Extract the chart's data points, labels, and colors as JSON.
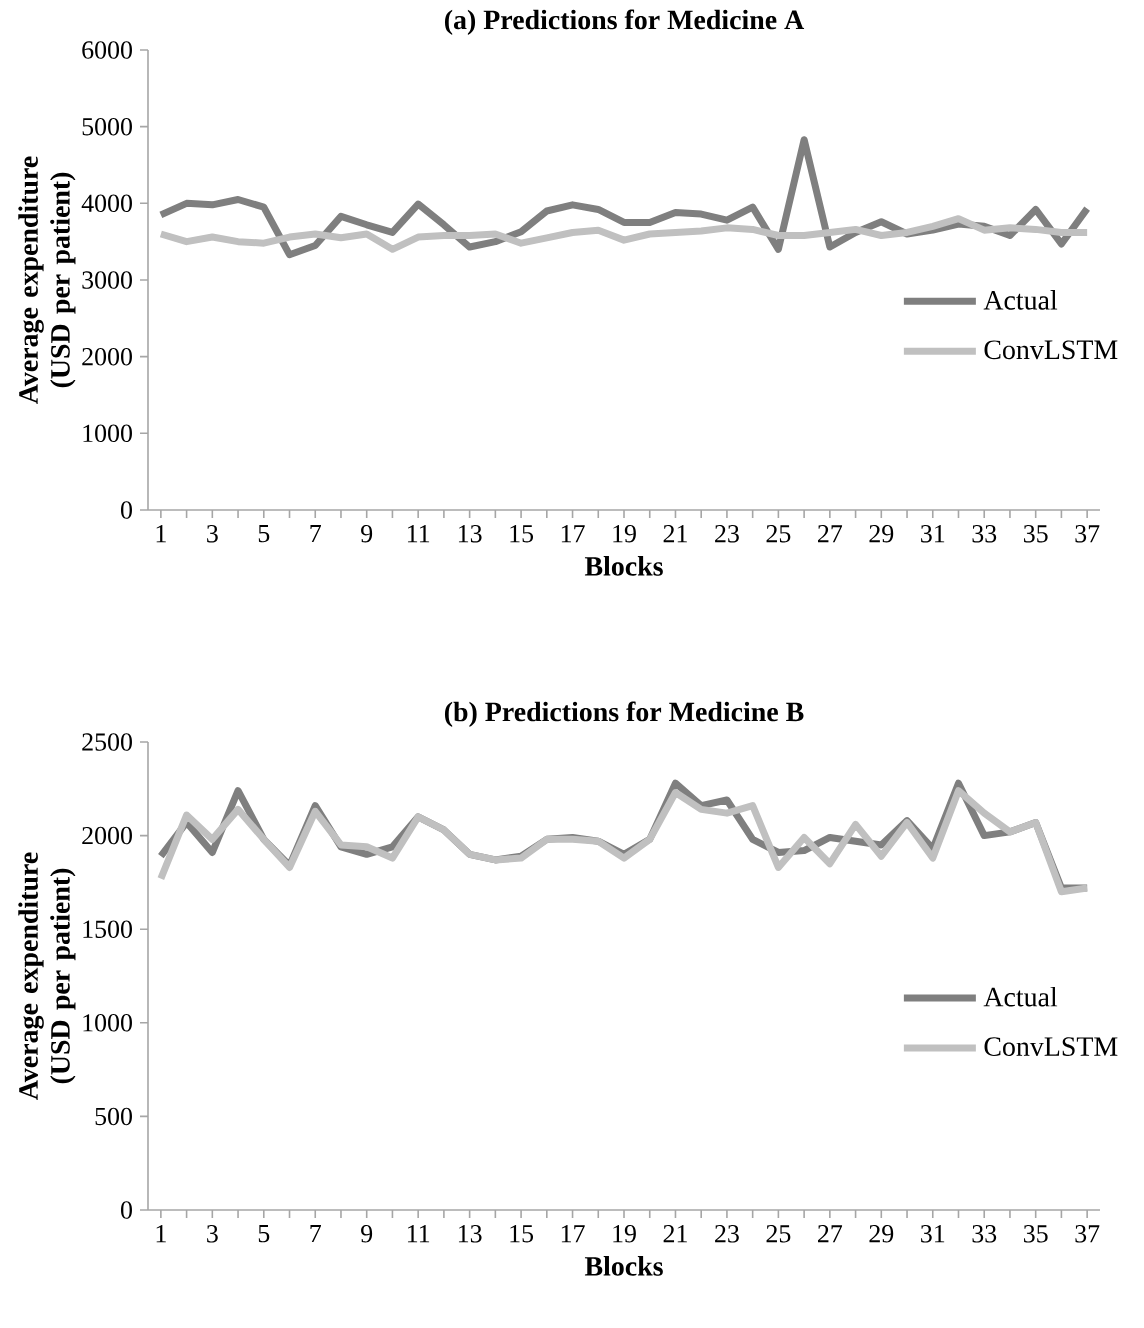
{
  "chart_data": [
    {
      "type": "line",
      "title": "(a) Predictions for Medicine A",
      "xlabel": "Blocks",
      "ylabel": "Average expenditure (USD per patient)",
      "categories": [
        "1",
        null,
        "3",
        null,
        "5",
        null,
        "7",
        null,
        "9",
        null,
        "11",
        null,
        "13",
        null,
        "15",
        null,
        "17",
        null,
        "19",
        null,
        "21",
        null,
        "23",
        null,
        "25",
        null,
        "27",
        null,
        "29",
        null,
        "31",
        null,
        "33",
        null,
        "35",
        null,
        "37"
      ],
      "series": [
        {
          "name": "Actual",
          "color": "#7f7f7f",
          "values": [
            3850,
            4000,
            3980,
            4050,
            3950,
            3330,
            3450,
            3830,
            3720,
            3620,
            3990,
            3720,
            3430,
            3500,
            3630,
            3900,
            3980,
            3920,
            3750,
            3750,
            3880,
            3860,
            3780,
            3950,
            3400,
            4830,
            3430,
            3620,
            3760,
            3600,
            3650,
            3730,
            3700,
            3580,
            3920,
            3470,
            3930
          ]
        },
        {
          "name": "ConvLSTM",
          "color": "#c0c0c0",
          "values": [
            3600,
            3500,
            3560,
            3500,
            3480,
            3560,
            3600,
            3550,
            3600,
            3400,
            3560,
            3580,
            3580,
            3600,
            3480,
            3550,
            3620,
            3650,
            3520,
            3600,
            3620,
            3640,
            3680,
            3660,
            3580,
            3580,
            3620,
            3660,
            3580,
            3620,
            3700,
            3800,
            3650,
            3680,
            3660,
            3620,
            3620
          ]
        }
      ],
      "ylim": [
        0,
        6000
      ],
      "yticks": [
        0,
        1000,
        2000,
        3000,
        4000,
        5000,
        6000
      ],
      "legend": "right"
    },
    {
      "type": "line",
      "title": "(b) Predictions for Medicine B",
      "xlabel": "Blocks",
      "ylabel": "Average expenditure (USD per patient)",
      "categories": [
        "1",
        null,
        "3",
        null,
        "5",
        null,
        "7",
        null,
        "9",
        null,
        "11",
        null,
        "13",
        null,
        "15",
        null,
        "17",
        null,
        "19",
        null,
        "21",
        null,
        "23",
        null,
        "25",
        null,
        "27",
        null,
        "29",
        null,
        "31",
        null,
        "33",
        null,
        "35",
        null,
        "37"
      ],
      "series": [
        {
          "name": "Actual",
          "color": "#7f7f7f",
          "values": [
            1890,
            2070,
            1910,
            2240,
            1980,
            1840,
            2160,
            1940,
            1900,
            1940,
            2100,
            2030,
            1900,
            1870,
            1890,
            1980,
            1990,
            1970,
            1900,
            1980,
            2280,
            2160,
            2190,
            1980,
            1910,
            1920,
            1990,
            1970,
            1950,
            2080,
            1930,
            2280,
            2000,
            2020,
            2070,
            1720,
            1720
          ]
        },
        {
          "name": "ConvLSTM",
          "color": "#c0c0c0",
          "values": [
            1770,
            2110,
            1980,
            2140,
            1980,
            1830,
            2130,
            1950,
            1940,
            1880,
            2100,
            2030,
            1900,
            1870,
            1880,
            1980,
            1980,
            1970,
            1880,
            1980,
            2230,
            2140,
            2120,
            2160,
            1830,
            1990,
            1850,
            2060,
            1890,
            2070,
            1880,
            2240,
            2120,
            2020,
            2070,
            1700,
            1720
          ]
        }
      ],
      "ylim": [
        0,
        2500
      ],
      "yticks": [
        0,
        500,
        1000,
        1500,
        2000,
        2500
      ],
      "legend": "right"
    }
  ]
}
